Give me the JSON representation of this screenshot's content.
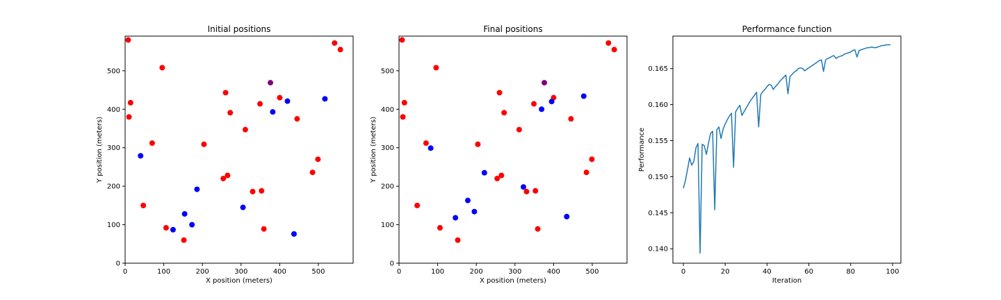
{
  "chart_data": [
    {
      "type": "scatter",
      "title": "Initial positions",
      "xlabel": "X position (meters)",
      "ylabel": "Y position (meters)",
      "xlim": [
        0,
        590
      ],
      "ylim": [
        0,
        590
      ],
      "xticks": [
        0,
        100,
        200,
        300,
        400,
        500
      ],
      "yticks": [
        0,
        100,
        200,
        300,
        400,
        500
      ],
      "grid": false,
      "series": [
        {
          "color": "#ff0000",
          "points": [
            [
              8,
              580
            ],
            [
              14,
              417
            ],
            [
              10,
              380
            ],
            [
              96,
              508
            ],
            [
              70,
              312
            ],
            [
              47,
              150
            ],
            [
              106,
              92
            ],
            [
              152,
              60
            ],
            [
              204,
              309
            ],
            [
              260,
              443
            ],
            [
              272,
              391
            ],
            [
              311,
              347
            ],
            [
              349,
              414
            ],
            [
              400,
              430
            ],
            [
              445,
              375
            ],
            [
              254,
              220
            ],
            [
              265,
              228
            ],
            [
              330,
              186
            ],
            [
              353,
              188
            ],
            [
              359,
              89
            ],
            [
              485,
              236
            ],
            [
              499,
              270
            ],
            [
              542,
              572
            ],
            [
              557,
              555
            ]
          ]
        },
        {
          "color": "#0000ff",
          "points": [
            [
              40,
              279
            ],
            [
              124,
              87
            ],
            [
              154,
              128
            ],
            [
              173,
              100
            ],
            [
              186,
              192
            ],
            [
              305,
              145
            ],
            [
              382,
              393
            ],
            [
              420,
              421
            ],
            [
              437,
              76
            ],
            [
              517,
              427
            ]
          ]
        },
        {
          "color": "#800080",
          "points": [
            [
              376,
              469
            ]
          ]
        }
      ]
    },
    {
      "type": "scatter",
      "title": "Final positions",
      "xlabel": "X position (meters)",
      "ylabel": "Y position (meters)",
      "xlim": [
        0,
        590
      ],
      "ylim": [
        0,
        590
      ],
      "xticks": [
        0,
        100,
        200,
        300,
        400,
        500
      ],
      "yticks": [
        0,
        100,
        200,
        300,
        400,
        500
      ],
      "grid": false,
      "series": [
        {
          "color": "#ff0000",
          "points": [
            [
              8,
              580
            ],
            [
              14,
              417
            ],
            [
              10,
              380
            ],
            [
              96,
              508
            ],
            [
              70,
              312
            ],
            [
              47,
              150
            ],
            [
              106,
              92
            ],
            [
              152,
              60
            ],
            [
              204,
              309
            ],
            [
              260,
              443
            ],
            [
              272,
              391
            ],
            [
              311,
              347
            ],
            [
              349,
              414
            ],
            [
              400,
              430
            ],
            [
              445,
              375
            ],
            [
              254,
              220
            ],
            [
              265,
              228
            ],
            [
              330,
              186
            ],
            [
              353,
              188
            ],
            [
              359,
              89
            ],
            [
              485,
              236
            ],
            [
              499,
              270
            ],
            [
              542,
              572
            ],
            [
              557,
              555
            ]
          ]
        },
        {
          "color": "#0000ff",
          "points": [
            [
              82,
              299
            ],
            [
              146,
              118
            ],
            [
              178,
              163
            ],
            [
              195,
              134
            ],
            [
              221,
              235
            ],
            [
              322,
              198
            ],
            [
              369,
              400
            ],
            [
              395,
              420
            ],
            [
              434,
              121
            ],
            [
              478,
              434
            ]
          ]
        },
        {
          "color": "#800080",
          "points": [
            [
              376,
              469
            ]
          ]
        }
      ]
    },
    {
      "type": "line",
      "title": "Performance function",
      "xlabel": "Iteration",
      "ylabel": "Performance",
      "xlim": [
        -5,
        104
      ],
      "ylim": [
        0.138,
        0.1695
      ],
      "xticks": [
        0,
        20,
        40,
        60,
        80,
        100
      ],
      "yticks": [
        0.14,
        0.145,
        0.15,
        0.155,
        0.16,
        0.165
      ],
      "ytick_labels": [
        "0.140",
        "0.145",
        "0.150",
        "0.155",
        "0.160",
        "0.165"
      ],
      "grid": false,
      "series": [
        {
          "color": "#1f77b4",
          "x": [
            0,
            1,
            2,
            3,
            4,
            5,
            6,
            7,
            8,
            9,
            10,
            11,
            12,
            13,
            14,
            15,
            16,
            17,
            18,
            19,
            20,
            21,
            22,
            23,
            24,
            25,
            26,
            27,
            28,
            29,
            30,
            31,
            32,
            33,
            34,
            35,
            36,
            37,
            38,
            39,
            40,
            41,
            42,
            43,
            44,
            45,
            46,
            47,
            48,
            49,
            50,
            51,
            52,
            53,
            54,
            55,
            56,
            57,
            58,
            59,
            60,
            61,
            62,
            63,
            64,
            65,
            66,
            67,
            68,
            69,
            70,
            71,
            72,
            73,
            74,
            75,
            76,
            77,
            78,
            79,
            80,
            81,
            82,
            83,
            84,
            85,
            86,
            87,
            88,
            89,
            90,
            91,
            92,
            93,
            94,
            95,
            96,
            97,
            98,
            99
          ],
          "values": [
            0.1484,
            0.1495,
            0.151,
            0.1526,
            0.1516,
            0.1521,
            0.154,
            0.1546,
            0.1394,
            0.1545,
            0.1543,
            0.1531,
            0.1546,
            0.156,
            0.1563,
            0.1454,
            0.1565,
            0.1569,
            0.1553,
            0.1566,
            0.1573,
            0.1579,
            0.1584,
            0.1588,
            0.1513,
            0.159,
            0.1595,
            0.1599,
            0.1585,
            0.159,
            0.1595,
            0.16,
            0.1605,
            0.1609,
            0.1613,
            0.1617,
            0.1569,
            0.1614,
            0.1618,
            0.1621,
            0.1625,
            0.1628,
            0.1627,
            0.1621,
            0.1625,
            0.1628,
            0.1632,
            0.1635,
            0.1638,
            0.1641,
            0.1615,
            0.1639,
            0.1642,
            0.1645,
            0.1647,
            0.165,
            0.1651,
            0.165,
            0.1647,
            0.1649,
            0.1651,
            0.1653,
            0.1655,
            0.1657,
            0.1659,
            0.1661,
            0.1662,
            0.1646,
            0.1662,
            0.1664,
            0.1665,
            0.1667,
            0.1668,
            0.1664,
            0.1666,
            0.1667,
            0.1668,
            0.167,
            0.1671,
            0.1672,
            0.1673,
            0.1675,
            0.1676,
            0.1666,
            0.1675,
            0.1676,
            0.1677,
            0.1678,
            0.1679,
            0.1679,
            0.168,
            0.1679,
            0.1679,
            0.168,
            0.1681,
            0.1682,
            0.1682,
            0.1683,
            0.1683,
            0.1683
          ]
        }
      ]
    }
  ]
}
